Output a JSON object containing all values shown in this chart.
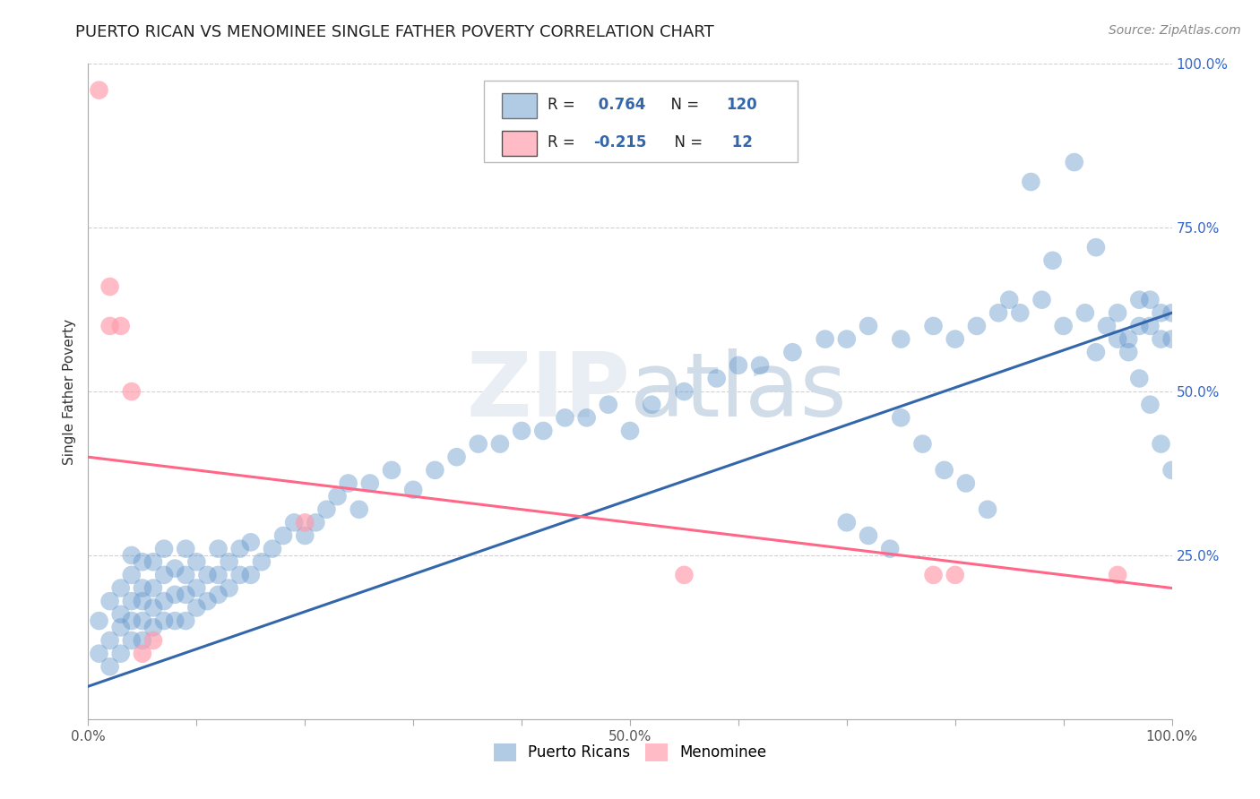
{
  "title": "PUERTO RICAN VS MENOMINEE SINGLE FATHER POVERTY CORRELATION CHART",
  "source": "Source: ZipAtlas.com",
  "ylabel": "Single Father Poverty",
  "watermark": "ZIPatlas",
  "xlim": [
    0.0,
    1.0
  ],
  "ylim": [
    0.0,
    1.0
  ],
  "xticks": [
    0.0,
    0.1,
    0.2,
    0.3,
    0.4,
    0.5,
    0.6,
    0.7,
    0.8,
    0.9,
    1.0
  ],
  "yticks": [
    0.0,
    0.25,
    0.5,
    0.75,
    1.0
  ],
  "xticklabels": [
    "0.0%",
    "",
    "",
    "",
    "",
    "50.0%",
    "",
    "",
    "",
    "",
    "100.0%"
  ],
  "yticklabels": [
    "",
    "25.0%",
    "50.0%",
    "75.0%",
    "100.0%"
  ],
  "blue_R": 0.764,
  "blue_N": 120,
  "pink_R": -0.215,
  "pink_N": 12,
  "blue_color": "#6699CC",
  "pink_color": "#FF99AA",
  "blue_line_color": "#3366AA",
  "pink_line_color": "#FF6688",
  "legend_label_blue": "Puerto Ricans",
  "legend_label_pink": "Menominee",
  "background_color": "#ffffff",
  "grid_color": "#cccccc",
  "blue_scatter_x": [
    0.01,
    0.01,
    0.02,
    0.02,
    0.02,
    0.03,
    0.03,
    0.03,
    0.03,
    0.04,
    0.04,
    0.04,
    0.04,
    0.04,
    0.05,
    0.05,
    0.05,
    0.05,
    0.05,
    0.06,
    0.06,
    0.06,
    0.06,
    0.07,
    0.07,
    0.07,
    0.07,
    0.08,
    0.08,
    0.08,
    0.09,
    0.09,
    0.09,
    0.09,
    0.1,
    0.1,
    0.1,
    0.11,
    0.11,
    0.12,
    0.12,
    0.12,
    0.13,
    0.13,
    0.14,
    0.14,
    0.15,
    0.15,
    0.16,
    0.17,
    0.18,
    0.19,
    0.2,
    0.21,
    0.22,
    0.23,
    0.24,
    0.25,
    0.26,
    0.28,
    0.3,
    0.32,
    0.34,
    0.36,
    0.38,
    0.4,
    0.42,
    0.44,
    0.46,
    0.48,
    0.5,
    0.52,
    0.55,
    0.58,
    0.6,
    0.62,
    0.65,
    0.68,
    0.7,
    0.72,
    0.75,
    0.78,
    0.8,
    0.82,
    0.84,
    0.86,
    0.88,
    0.9,
    0.92,
    0.93,
    0.94,
    0.95,
    0.96,
    0.97,
    0.97,
    0.98,
    0.98,
    0.99,
    0.99,
    1.0,
    1.0,
    0.85,
    0.87,
    0.89,
    0.91,
    0.93,
    0.95,
    0.96,
    0.97,
    0.98,
    0.99,
    1.0,
    0.75,
    0.77,
    0.79,
    0.81,
    0.83,
    0.7,
    0.72,
    0.74
  ],
  "blue_scatter_y": [
    0.1,
    0.15,
    0.08,
    0.12,
    0.18,
    0.1,
    0.14,
    0.16,
    0.2,
    0.12,
    0.15,
    0.18,
    0.22,
    0.25,
    0.12,
    0.15,
    0.18,
    0.2,
    0.24,
    0.14,
    0.17,
    0.2,
    0.24,
    0.15,
    0.18,
    0.22,
    0.26,
    0.15,
    0.19,
    0.23,
    0.15,
    0.19,
    0.22,
    0.26,
    0.17,
    0.2,
    0.24,
    0.18,
    0.22,
    0.19,
    0.22,
    0.26,
    0.2,
    0.24,
    0.22,
    0.26,
    0.22,
    0.27,
    0.24,
    0.26,
    0.28,
    0.3,
    0.28,
    0.3,
    0.32,
    0.34,
    0.36,
    0.32,
    0.36,
    0.38,
    0.35,
    0.38,
    0.4,
    0.42,
    0.42,
    0.44,
    0.44,
    0.46,
    0.46,
    0.48,
    0.44,
    0.48,
    0.5,
    0.52,
    0.54,
    0.54,
    0.56,
    0.58,
    0.58,
    0.6,
    0.58,
    0.6,
    0.58,
    0.6,
    0.62,
    0.62,
    0.64,
    0.6,
    0.62,
    0.56,
    0.6,
    0.62,
    0.58,
    0.6,
    0.64,
    0.6,
    0.64,
    0.58,
    0.62,
    0.58,
    0.62,
    0.64,
    0.82,
    0.7,
    0.85,
    0.72,
    0.58,
    0.56,
    0.52,
    0.48,
    0.42,
    0.38,
    0.46,
    0.42,
    0.38,
    0.36,
    0.32,
    0.3,
    0.28,
    0.26
  ],
  "pink_scatter_x": [
    0.01,
    0.02,
    0.02,
    0.03,
    0.04,
    0.05,
    0.06,
    0.55,
    0.78,
    0.8,
    0.95,
    0.2
  ],
  "pink_scatter_y": [
    0.96,
    0.6,
    0.66,
    0.6,
    0.5,
    0.1,
    0.12,
    0.22,
    0.22,
    0.22,
    0.22,
    0.3
  ],
  "blue_line_x0": 0.0,
  "blue_line_y0": 0.05,
  "blue_line_x1": 1.0,
  "blue_line_y1": 0.62,
  "pink_line_x0": 0.0,
  "pink_line_y0": 0.4,
  "pink_line_x1": 1.0,
  "pink_line_y1": 0.2
}
